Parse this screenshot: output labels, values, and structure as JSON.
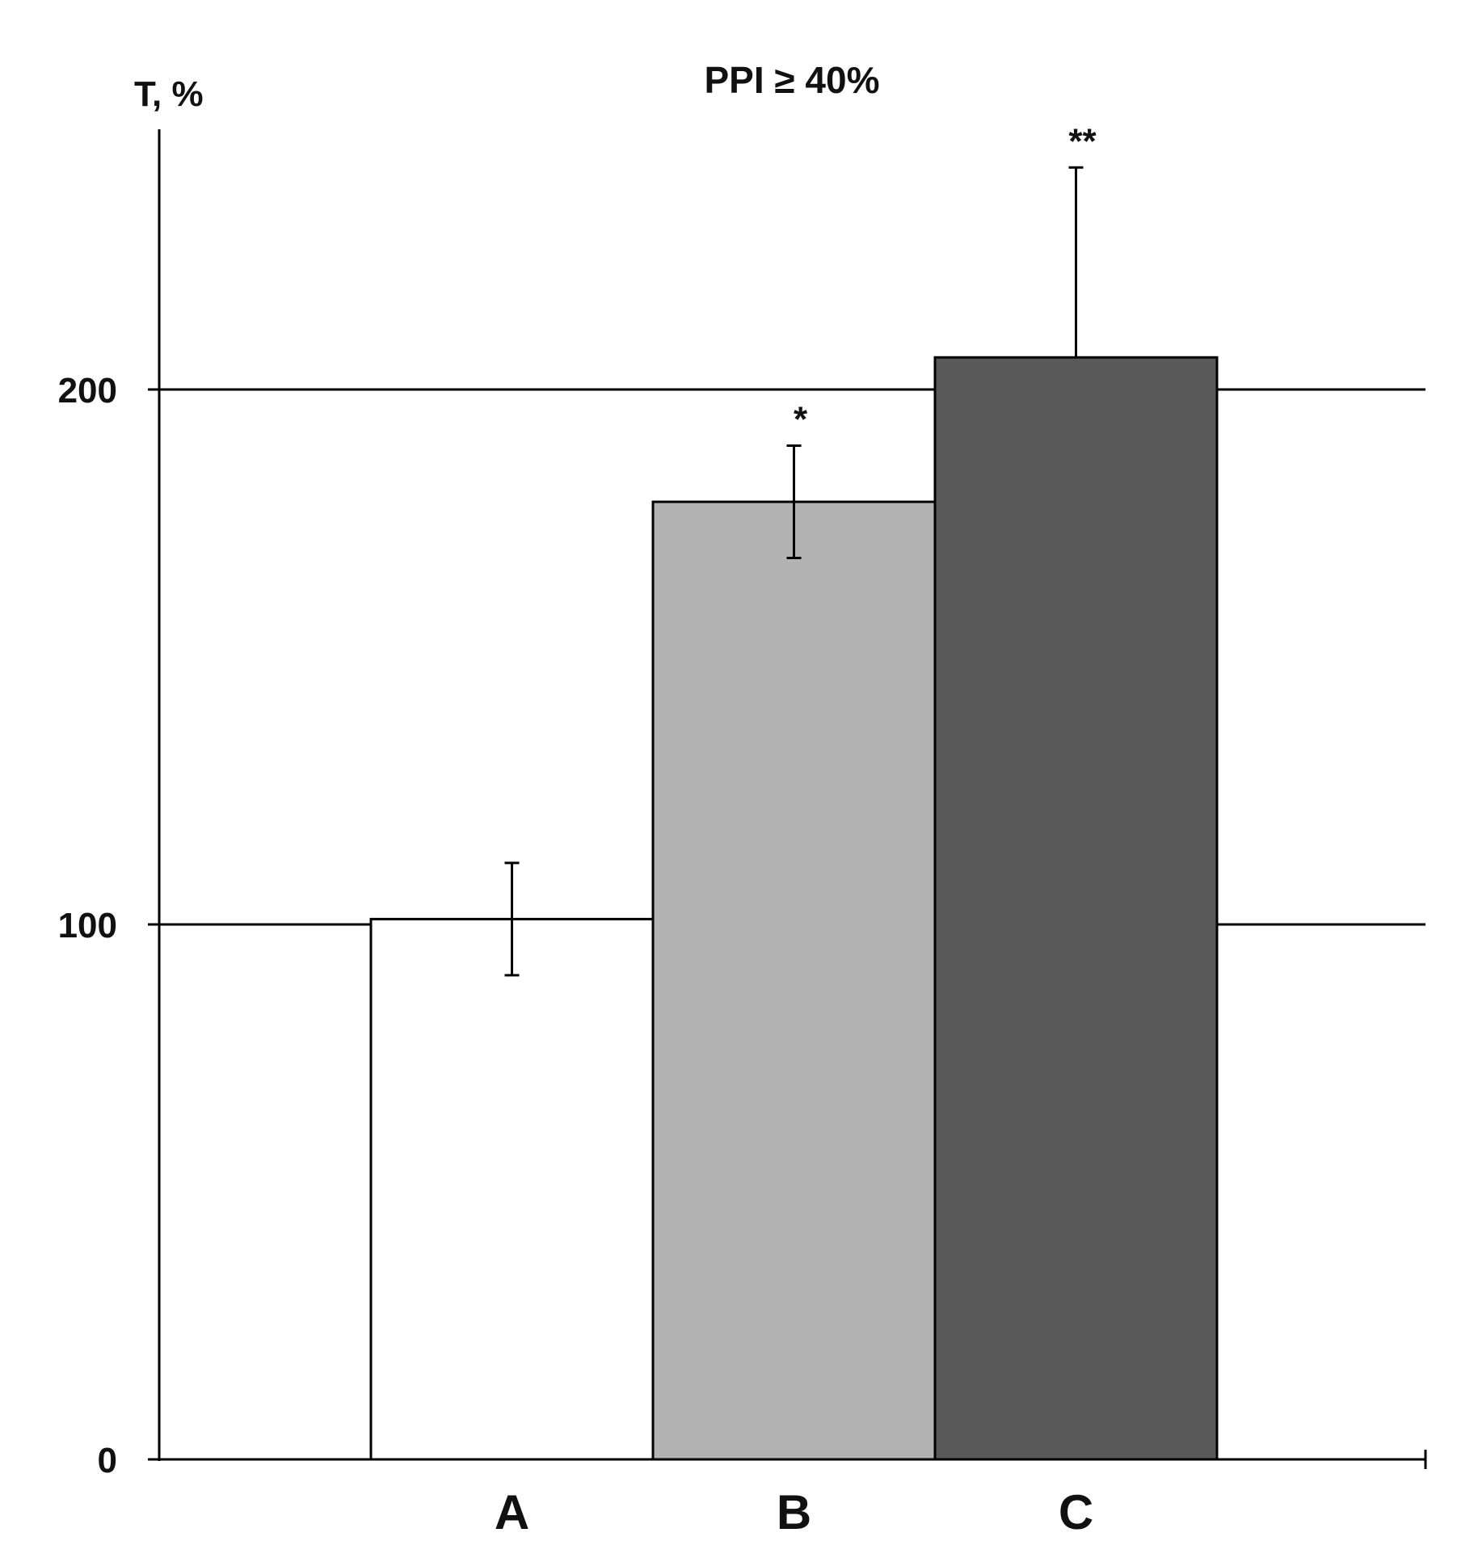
{
  "chart_data": {
    "type": "bar",
    "title": "PPI ≥ 40%",
    "ylabel": "T, %",
    "xlabel": "",
    "categories": [
      "A",
      "B",
      "C"
    ],
    "values": [
      101,
      179,
      206
    ],
    "error_plus": [
      10.5,
      10.5,
      35.5
    ],
    "error_minus": [
      10.5,
      10.5,
      0
    ],
    "significance": [
      "",
      "*",
      "**"
    ],
    "colors": [
      "#ffffff",
      "#b3b3b3",
      "#595959"
    ],
    "ylim": [
      0,
      250
    ],
    "yticks": [
      0,
      100,
      200
    ],
    "ytick_labels": [
      "0",
      "100",
      "200"
    ],
    "grid": true,
    "legend": "none"
  }
}
